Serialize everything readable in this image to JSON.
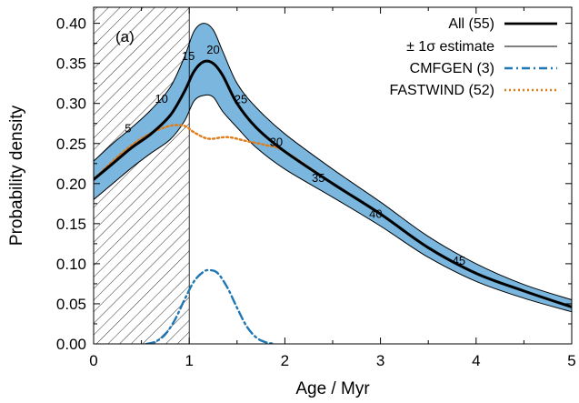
{
  "chart_data": {
    "type": "line",
    "panel_label": "(a)",
    "xlabel": "Age / Myr",
    "ylabel": "Probability density",
    "xlim": [
      0,
      5
    ],
    "ylim": [
      0,
      0.42
    ],
    "x_ticks": [
      0,
      1,
      2,
      3,
      4,
      5
    ],
    "x_tick_labels": [
      "0",
      "1",
      "2",
      "3",
      "4",
      "5"
    ],
    "y_ticks": [
      0,
      0.05,
      0.1,
      0.15,
      0.2,
      0.25,
      0.3,
      0.35,
      0.4
    ],
    "y_tick_labels": [
      "0.00",
      "0.05",
      "0.10",
      "0.15",
      "0.20",
      "0.25",
      "0.30",
      "0.35",
      "0.40"
    ],
    "grid": false,
    "legend_position": "top-right",
    "hatched_region": {
      "x_from": 0,
      "x_to": 1
    },
    "series": [
      {
        "name": "All (55)",
        "color": "#000000",
        "style": "solid-thick",
        "x": [
          0,
          0.2,
          0.4,
          0.6,
          0.8,
          0.95,
          1.05,
          1.15,
          1.25,
          1.35,
          1.5,
          1.7,
          2.0,
          2.5,
          3.0,
          3.5,
          4.0,
          4.5,
          5.0
        ],
        "y": [
          0.205,
          0.225,
          0.245,
          0.262,
          0.285,
          0.315,
          0.34,
          0.352,
          0.35,
          0.335,
          0.3,
          0.27,
          0.24,
          0.2,
          0.162,
          0.12,
          0.088,
          0.066,
          0.046
        ]
      },
      {
        "name": "± 1σ estimate",
        "color": "#000000",
        "style": "solid-thin",
        "upper": {
          "x": [
            0,
            0.2,
            0.4,
            0.6,
            0.8,
            0.95,
            1.05,
            1.15,
            1.25,
            1.35,
            1.5,
            1.7,
            2.0,
            2.5,
            3.0,
            3.5,
            4.0,
            4.5,
            5.0
          ],
          "y": [
            0.228,
            0.25,
            0.27,
            0.292,
            0.32,
            0.358,
            0.39,
            0.4,
            0.392,
            0.365,
            0.325,
            0.295,
            0.262,
            0.218,
            0.177,
            0.134,
            0.1,
            0.074,
            0.055
          ]
        },
        "lower": {
          "x": [
            0,
            0.2,
            0.4,
            0.6,
            0.8,
            0.95,
            1.05,
            1.15,
            1.25,
            1.35,
            1.5,
            1.7,
            2.0,
            2.5,
            3.0,
            3.5,
            4.0,
            4.5,
            5.0
          ],
          "y": [
            0.18,
            0.2,
            0.22,
            0.238,
            0.255,
            0.278,
            0.303,
            0.31,
            0.308,
            0.29,
            0.27,
            0.245,
            0.218,
            0.183,
            0.147,
            0.108,
            0.078,
            0.057,
            0.04
          ]
        },
        "band_color": "#7ab6dd"
      },
      {
        "name": "CMFGEN (3)",
        "color": "#1f77b4",
        "style": "dash-dot",
        "x": [
          0.55,
          0.65,
          0.75,
          0.85,
          0.95,
          1.05,
          1.15,
          1.22,
          1.3,
          1.4,
          1.5,
          1.6,
          1.7,
          1.8,
          1.9
        ],
        "y": [
          0.0,
          0.003,
          0.012,
          0.03,
          0.055,
          0.078,
          0.09,
          0.092,
          0.088,
          0.07,
          0.045,
          0.022,
          0.008,
          0.002,
          0.0
        ]
      },
      {
        "name": "FASTWIND (52)",
        "color": "#e07b18",
        "style": "dotted",
        "x": [
          0,
          0.2,
          0.4,
          0.6,
          0.8,
          0.95,
          1.05,
          1.2,
          1.4,
          1.6,
          1.8,
          2.0,
          2.5,
          3.0,
          3.5,
          4.0,
          4.5,
          5.0
        ],
        "y": [
          0.205,
          0.228,
          0.248,
          0.263,
          0.272,
          0.272,
          0.264,
          0.256,
          0.258,
          0.253,
          0.248,
          0.24,
          0.2,
          0.162,
          0.12,
          0.088,
          0.066,
          0.046
        ]
      }
    ],
    "annotations": [
      {
        "text": "5",
        "x": 0.36,
        "y": 0.264
      },
      {
        "text": "10",
        "x": 0.71,
        "y": 0.301
      },
      {
        "text": "15",
        "x": 0.99,
        "y": 0.354
      },
      {
        "text": "20",
        "x": 1.25,
        "y": 0.362
      },
      {
        "text": "25",
        "x": 1.54,
        "y": 0.3
      },
      {
        "text": "30",
        "x": 1.91,
        "y": 0.247
      },
      {
        "text": "35",
        "x": 2.35,
        "y": 0.202
      },
      {
        "text": "40",
        "x": 2.95,
        "y": 0.157
      },
      {
        "text": "45",
        "x": 3.82,
        "y": 0.099
      }
    ]
  }
}
